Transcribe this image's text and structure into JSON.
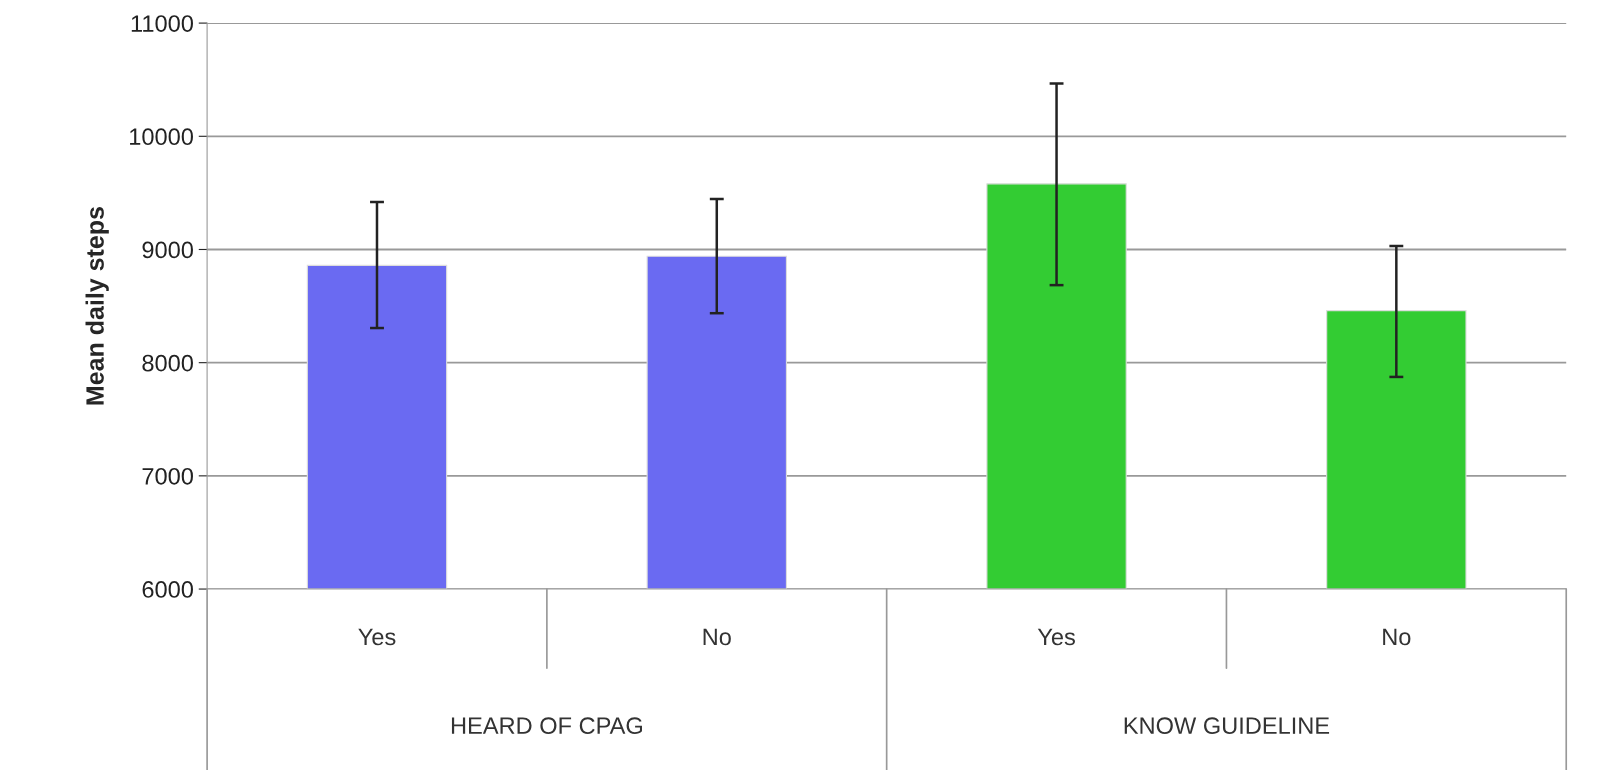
{
  "chart_data": {
    "type": "bar",
    "ylabel": "Mean daily steps",
    "categories": [
      "Yes",
      "No",
      "Yes",
      "No"
    ],
    "values": [
      8860,
      8940,
      9580,
      8460
    ],
    "colors": [
      "#6a6af2",
      "#6a6af2",
      "#33cc33",
      "#33cc33"
    ],
    "errors": [
      [
        8306,
        9419
      ],
      [
        8437,
        9446
      ],
      [
        8685,
        10467
      ],
      [
        7874,
        9030
      ]
    ],
    "ylim": [
      6000,
      11000
    ],
    "yticks": [
      6000,
      7000,
      8000,
      9000,
      10000,
      11000
    ],
    "grid": "y",
    "annotations": [
      "HEARD OF CPAG",
      "KNOW GUIDELINE"
    ]
  }
}
